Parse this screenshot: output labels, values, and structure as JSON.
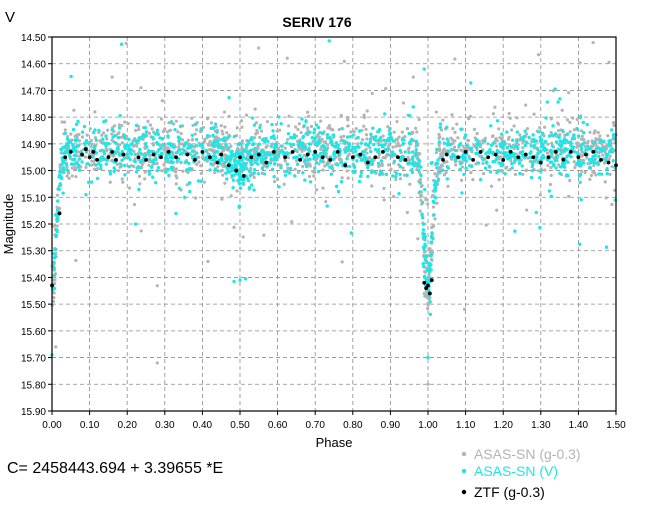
{
  "chart_data": {
    "type": "scatter",
    "title": "SERIV 176",
    "ymark": "V",
    "xlabel": "Phase",
    "ylabel": "Magnitude",
    "xlim": [
      0.0,
      1.5
    ],
    "ylim": [
      14.5,
      15.9
    ],
    "y_inverted": true,
    "grid": true,
    "x_ticks": [
      "0.00",
      "0.10",
      "0.20",
      "0.30",
      "0.40",
      "0.50",
      "0.60",
      "0.70",
      "0.80",
      "0.90",
      "1.00",
      "1.10",
      "1.20",
      "1.30",
      "1.40",
      "1.50"
    ],
    "y_ticks": [
      "14.50",
      "14.60",
      "14.70",
      "14.80",
      "14.90",
      "15.00",
      "15.10",
      "15.20",
      "15.30",
      "15.40",
      "15.50",
      "15.60",
      "15.70",
      "15.80",
      "15.90"
    ],
    "legend_position": "bottom-right",
    "series": [
      {
        "name": "ASAS-SN (g-0.3)",
        "color": "#b4b4b4",
        "model": {
          "baseline": 14.92,
          "minima": [
            {
              "phase": 0.0,
              "depth": 0.52,
              "width": 0.012
            },
            {
              "phase": 0.5,
              "depth": 0.06,
              "width": 0.02
            },
            {
              "phase": 1.0,
              "depth": 0.52,
              "width": 0.012
            }
          ],
          "scatter": 0.055,
          "count": 1500
        },
        "samples": [
          {
            "x": 0.01,
            "y": 15.66
          },
          {
            "x": 0.99,
            "y": 15.46
          },
          {
            "x": 1.0,
            "y": 15.8
          },
          {
            "x": 0.16,
            "y": 14.65
          },
          {
            "x": 0.28,
            "y": 15.72
          }
        ]
      },
      {
        "name": "ASAS-SN (V)",
        "color": "#1ee6e6",
        "model": {
          "baseline": 14.93,
          "minima": [
            {
              "phase": 0.0,
              "depth": 0.5,
              "width": 0.012
            },
            {
              "phase": 0.5,
              "depth": 0.05,
              "width": 0.02
            },
            {
              "phase": 1.0,
              "depth": 0.5,
              "width": 0.012
            }
          ],
          "scatter": 0.045,
          "count": 1300
        },
        "samples": [
          {
            "x": 0.0,
            "y": 15.69
          },
          {
            "x": 1.0,
            "y": 15.7
          },
          {
            "x": 0.99,
            "y": 14.62
          },
          {
            "x": 0.5,
            "y": 15.41
          }
        ]
      },
      {
        "name": "ZTF (g-0.3)",
        "color": "#000000",
        "x": [
          0.0,
          0.02,
          0.035,
          0.05,
          0.08,
          0.09,
          0.1,
          0.11,
          0.12,
          0.15,
          0.16,
          0.17,
          0.19,
          0.23,
          0.25,
          0.27,
          0.29,
          0.31,
          0.33,
          0.36,
          0.38,
          0.4,
          0.42,
          0.44,
          0.45,
          0.47,
          0.49,
          0.5,
          0.51,
          0.53,
          0.55,
          0.57,
          0.59,
          0.62,
          0.64,
          0.66,
          0.68,
          0.7,
          0.72,
          0.74,
          0.76,
          0.78,
          0.8,
          0.82,
          0.84,
          0.86,
          0.88,
          0.92,
          0.94,
          0.99,
          0.995,
          1.0,
          1.005,
          1.01,
          1.04,
          1.05,
          1.08,
          1.1,
          1.12,
          1.14,
          1.16,
          1.18,
          1.2,
          1.22,
          1.24,
          1.26,
          1.28,
          1.3,
          1.32,
          1.34,
          1.36,
          1.38,
          1.4,
          1.42,
          1.44,
          1.46,
          1.48,
          1.5
        ],
        "y": [
          15.43,
          15.16,
          14.95,
          14.93,
          14.94,
          14.92,
          14.95,
          14.93,
          14.96,
          14.95,
          14.93,
          14.96,
          14.94,
          14.95,
          14.96,
          14.94,
          14.95,
          14.93,
          14.95,
          14.94,
          14.96,
          14.93,
          14.95,
          14.97,
          14.94,
          14.98,
          15.0,
          14.95,
          15.02,
          14.95,
          14.94,
          14.97,
          14.93,
          14.95,
          14.93,
          14.96,
          14.94,
          14.93,
          14.95,
          14.96,
          14.93,
          14.98,
          14.95,
          14.94,
          14.97,
          14.95,
          14.93,
          14.95,
          14.96,
          15.42,
          15.44,
          15.43,
          15.46,
          15.41,
          14.96,
          14.94,
          14.95,
          14.93,
          14.96,
          14.93,
          14.95,
          14.94,
          14.96,
          14.93,
          14.95,
          14.94,
          14.95,
          14.97,
          14.95,
          14.93,
          14.96,
          14.93,
          14.95,
          14.94,
          14.93,
          14.96,
          14.97,
          14.98
        ]
      }
    ],
    "annotation": "C= 2458443.694 + 3.39655 *E"
  }
}
